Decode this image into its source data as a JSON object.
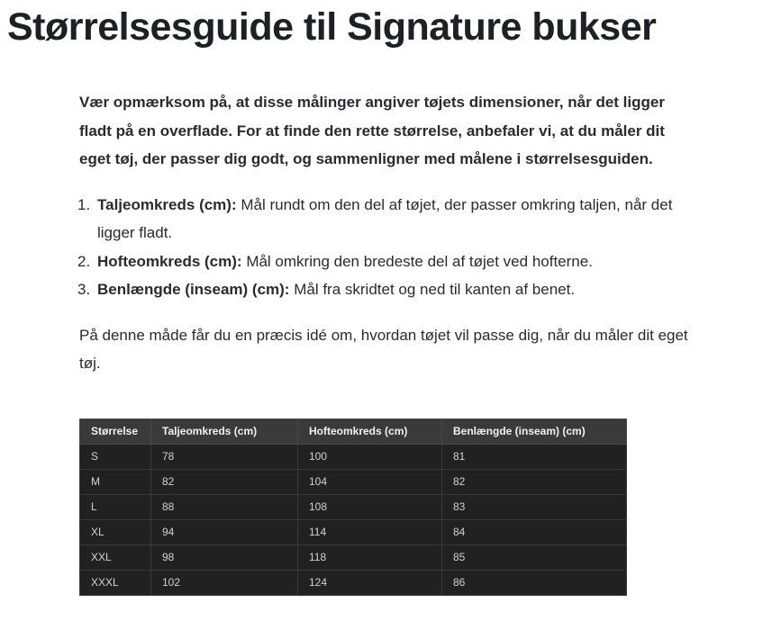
{
  "heading": {
    "title": "Størrelsesguide til Signature bukser"
  },
  "intro": {
    "text": "Vær opmærksom på, at disse målinger angiver tøjets dimensioner, når det ligger fladt på en overflade. For at finde den rette størrelse, anbefaler vi, at du måler dit eget tøj, der passer dig godt, og sammenligner med målene i størrelsesguiden."
  },
  "list": {
    "items": [
      {
        "number": "1.",
        "bold": "Taljeomkreds (cm):",
        "text": " Mål rundt om den del af tøjet, der passer omkring taljen, når det ligger fladt."
      },
      {
        "number": "2.",
        "bold": "Hofteomkreds (cm):",
        "text": " Mål omkring den bredeste del af tøjet ved hofterne."
      },
      {
        "number": "3.",
        "bold": "Benlængde (inseam) (cm):",
        "text": " Mål fra skridtet og ned til kanten af benet."
      }
    ]
  },
  "outro": {
    "text": "På denne måde får du en præcis idé om, hvordan tøjet vil passe dig, når du måler dit eget tøj."
  },
  "size_table": {
    "headers": [
      "Størrelse",
      "Taljeomkreds (cm)",
      "Hofteomkreds (cm)",
      "Benlængde (inseam) (cm)"
    ],
    "rows": [
      [
        "S",
        "78",
        "100",
        "81"
      ],
      [
        "M",
        "82",
        "104",
        "82"
      ],
      [
        "L",
        "88",
        "108",
        "83"
      ],
      [
        "XL",
        "94",
        "114",
        "84"
      ],
      [
        "XXL",
        "98",
        "118",
        "85"
      ],
      [
        "XXXL",
        "102",
        "124",
        "86"
      ]
    ],
    "colors": {
      "header_bg": "#3a3a3a",
      "row_bg": "#212121",
      "border": "#3a3a3a",
      "header_text": "#f1f1f1",
      "cell_text": "#d2d2d2"
    }
  }
}
